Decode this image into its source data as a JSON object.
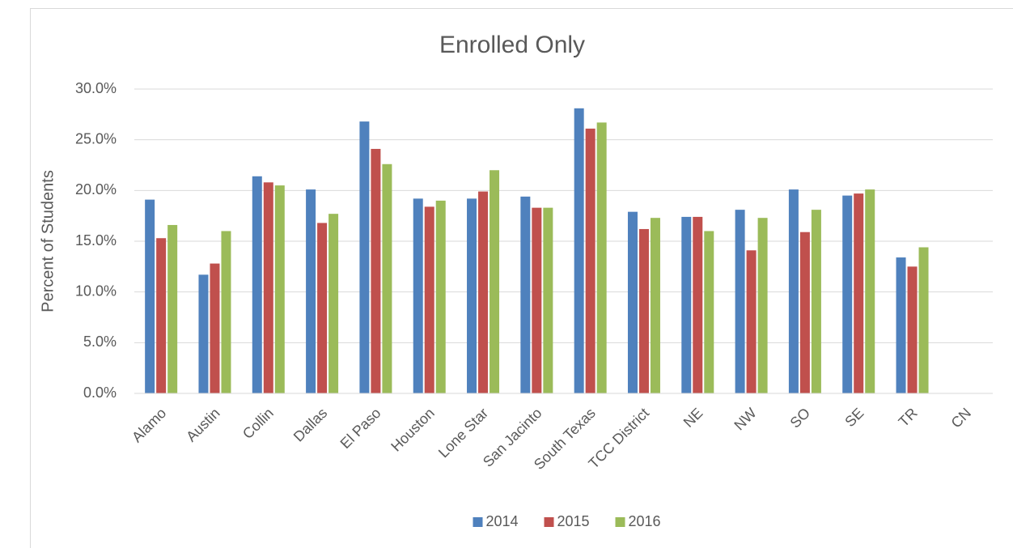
{
  "chart_data": {
    "type": "bar",
    "title": "Enrolled Only",
    "y_label": "Percent of Students",
    "categories": [
      "Alamo",
      "Austin",
      "Collin",
      "Dallas",
      "El Paso",
      "Houston",
      "Lone Star",
      "San Jacinto",
      "South Texas",
      "TCC District",
      "NE",
      "NW",
      "SO",
      "SE",
      "TR",
      "CN"
    ],
    "series": [
      {
        "name": "2014",
        "color": "#4f81bd",
        "values": [
          19.1,
          11.7,
          21.4,
          20.1,
          26.8,
          19.2,
          19.2,
          19.4,
          28.1,
          17.9,
          17.4,
          18.1,
          20.1,
          19.5,
          13.4,
          null
        ]
      },
      {
        "name": "2015",
        "color": "#c0504d",
        "values": [
          15.3,
          12.8,
          20.8,
          16.8,
          24.1,
          18.4,
          19.9,
          18.3,
          26.1,
          16.2,
          17.4,
          14.1,
          15.9,
          19.7,
          12.5,
          null
        ]
      },
      {
        "name": "2016",
        "color": "#9bbb59",
        "values": [
          16.6,
          16.0,
          20.5,
          17.7,
          22.6,
          19.0,
          22.0,
          18.3,
          26.7,
          17.3,
          16.0,
          17.3,
          18.1,
          20.1,
          14.4,
          null
        ]
      }
    ],
    "ylim": [
      0,
      30
    ],
    "yticks": [
      {
        "value": 0,
        "label": "0.0%"
      },
      {
        "value": 5,
        "label": "5.0%"
      },
      {
        "value": 10,
        "label": "10.0%"
      },
      {
        "value": 15,
        "label": "15.0%"
      },
      {
        "value": 20,
        "label": "20.0%"
      },
      {
        "value": 25,
        "label": "25.0%"
      },
      {
        "value": 30,
        "label": "30.0%"
      }
    ],
    "grid": true,
    "legend": "bottom"
  }
}
